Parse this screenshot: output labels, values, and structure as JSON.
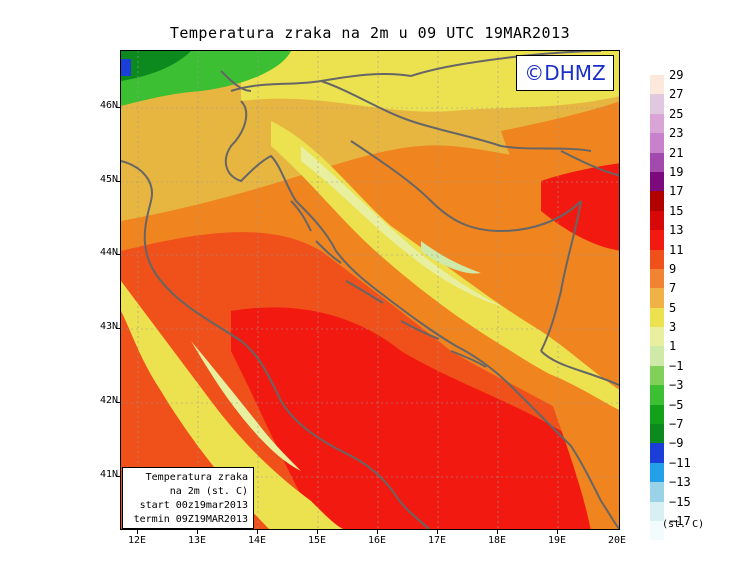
{
  "title": "Temperatura zraka na 2m u 09 UTC 19MAR2013",
  "logo": "©DHMZ",
  "infobox": {
    "line1": "Temperatura zraka",
    "line2": "na 2m (st. C)",
    "line3": "start 00z19mar2013",
    "line4": "termin 09Z19MAR2013"
  },
  "lat_labels": [
    "46N",
    "45N",
    "44N",
    "43N",
    "42N",
    "41N"
  ],
  "lon_labels": [
    "12E",
    "13E",
    "14E",
    "15E",
    "16E",
    "17E",
    "18E",
    "19E",
    "20E"
  ],
  "legend": {
    "unit": "(st. C)",
    "labels": [
      "29",
      "27",
      "25",
      "23",
      "21",
      "19",
      "17",
      "15",
      "13",
      "11",
      "9",
      "7",
      "5",
      "3",
      "1",
      "−1",
      "−3",
      "−5",
      "−7",
      "−9",
      "−11",
      "−13",
      "−15",
      "−17"
    ],
    "colors": [
      "#fde9dc",
      "#e0c8de",
      "#d9a5d6",
      "#c882cc",
      "#a24aae",
      "#7d0a7d",
      "#b00000",
      "#d80808",
      "#f21a10",
      "#f0501a",
      "#f08432",
      "#f0b246",
      "#ece250",
      "#e8f0a0",
      "#cfeaa8",
      "#80d05a",
      "#3cbf33",
      "#12a118",
      "#0c8a1e",
      "#1c3ed8",
      "#22a0e8",
      "#9ad2e8",
      "#d8f0f4",
      "#f2fcfc"
    ]
  }
}
